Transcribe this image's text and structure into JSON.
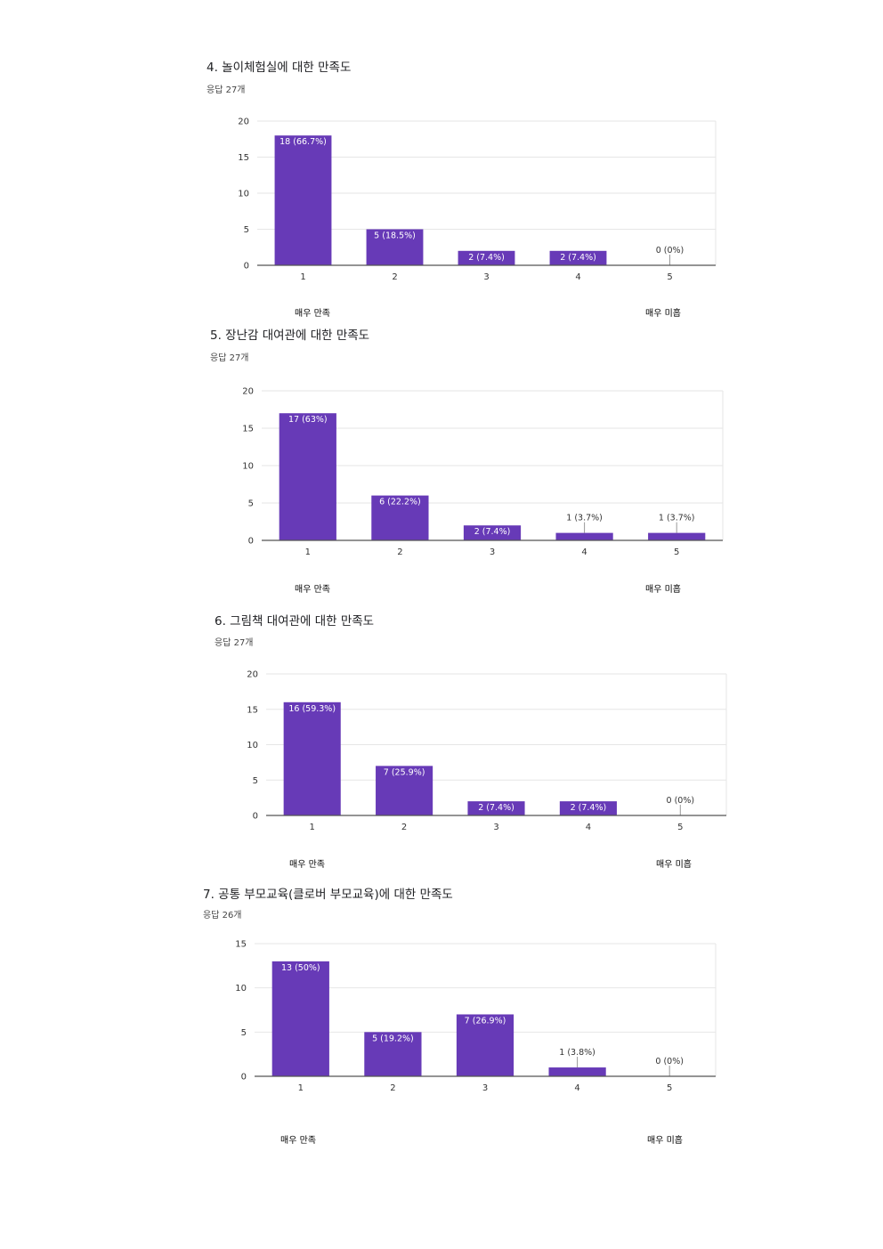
{
  "chart_data": [
    {
      "type": "bar",
      "title": "4. 놀이체험실에 대한 만족도",
      "subtitle": "응답 27개",
      "categories": [
        "1",
        "2",
        "3",
        "4",
        "5"
      ],
      "values": [
        18,
        5,
        2,
        2,
        0
      ],
      "data_labels": [
        "18 (66.7%)",
        "5 (18.5%)",
        "2 (7.4%)",
        "2 (7.4%)",
        "0 (0%)"
      ],
      "ylim": [
        0,
        20
      ],
      "yticks": [
        0,
        5,
        10,
        15,
        20
      ],
      "grid": true,
      "scale_low_label": "매우 만족",
      "scale_high_label": "매우 미흡",
      "bar_color": "#673ab7"
    },
    {
      "type": "bar",
      "title": "5. 장난감 대여관에 대한 만족도",
      "subtitle": "응답 27개",
      "categories": [
        "1",
        "2",
        "3",
        "4",
        "5"
      ],
      "values": [
        17,
        6,
        2,
        1,
        1
      ],
      "data_labels": [
        "17 (63%)",
        "6 (22.2%)",
        "2 (7.4%)",
        "1 (3.7%)",
        "1 (3.7%)"
      ],
      "ylim": [
        0,
        20
      ],
      "yticks": [
        0,
        5,
        10,
        15,
        20
      ],
      "grid": true,
      "scale_low_label": "매우 만족",
      "scale_high_label": "매우 미흡",
      "bar_color": "#673ab7"
    },
    {
      "type": "bar",
      "title": "6. 그림책 대여관에 대한 만족도",
      "subtitle": "응답 27개",
      "categories": [
        "1",
        "2",
        "3",
        "4",
        "5"
      ],
      "values": [
        16,
        7,
        2,
        2,
        0
      ],
      "data_labels": [
        "16 (59.3%)",
        "7 (25.9%)",
        "2 (7.4%)",
        "2 (7.4%)",
        "0 (0%)"
      ],
      "ylim": [
        0,
        20
      ],
      "yticks": [
        0,
        5,
        10,
        15,
        20
      ],
      "grid": true,
      "scale_low_label": "매우 만족",
      "scale_high_label": "매우 미흡",
      "bar_color": "#673ab7"
    },
    {
      "type": "bar",
      "title": "7. 공통 부모교육(클로버 부모교육)에 대한 만족도",
      "subtitle": "응답 26개",
      "categories": [
        "1",
        "2",
        "3",
        "4",
        "5"
      ],
      "values": [
        13,
        5,
        7,
        1,
        0
      ],
      "data_labels": [
        "13 (50%)",
        "5 (19.2%)",
        "7 (26.9%)",
        "1 (3.8%)",
        "0 (0%)"
      ],
      "ylim": [
        0,
        15
      ],
      "yticks": [
        0,
        5,
        10,
        15
      ],
      "grid": true,
      "scale_low_label": "매우 만족",
      "scale_high_label": "매우 미흡",
      "bar_color": "#673ab7"
    }
  ]
}
